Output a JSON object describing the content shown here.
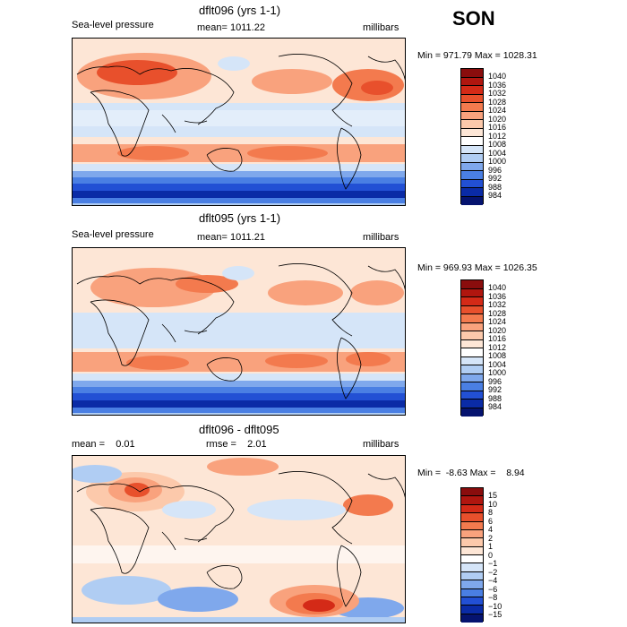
{
  "season": "SON",
  "panels": [
    {
      "title": "dflt096 (yrs 1-1)",
      "variable": "Sea-level pressure",
      "stat_text": "mean= 1011.22",
      "units": "millibars",
      "minmax": "Min = 971.79 Max = 1028.31"
    },
    {
      "title": "dflt095 (yrs 1-1)",
      "variable": "Sea-level pressure",
      "stat_text": "mean= 1011.21",
      "units": "millibars",
      "minmax": "Min = 969.93 Max = 1026.35"
    },
    {
      "title": "dflt096 - dflt095",
      "mean_text": "mean =    0.01",
      "rmse_text": "rmse =    2.01",
      "units": "millibars",
      "minmax": "Min =  -8.63 Max =    8.94"
    }
  ],
  "chart_data": [
    {
      "type": "heatmap",
      "title": "dflt096 (yrs 1-1)",
      "subtitle": "Sea-level pressure",
      "units": "millibars",
      "mean": 1011.22,
      "min": 971.79,
      "max": 1028.31,
      "colorbar_levels": [
        "1040",
        "1036",
        "1032",
        "1028",
        "1024",
        "1020",
        "1016",
        "1012",
        "1008",
        "1004",
        "1000",
        "996",
        "992",
        "988",
        "984"
      ],
      "colorbar_colors": [
        "#8a0d0d",
        "#b0160f",
        "#d42a17",
        "#e8502c",
        "#f37a4e",
        "#f9a27d",
        "#fcc9ab",
        "#fde6d6",
        "#ffffff",
        "#d5e5f8",
        "#b0cdf3",
        "#7fa8ec",
        "#4a7fe3",
        "#2250d4",
        "#0a2ba6",
        "#05136f"
      ]
    },
    {
      "type": "heatmap",
      "title": "dflt095 (yrs 1-1)",
      "subtitle": "Sea-level pressure",
      "units": "millibars",
      "mean": 1011.21,
      "min": 969.93,
      "max": 1026.35,
      "colorbar_levels": [
        "1040",
        "1036",
        "1032",
        "1028",
        "1024",
        "1020",
        "1016",
        "1012",
        "1008",
        "1004",
        "1000",
        "996",
        "992",
        "988",
        "984"
      ],
      "colorbar_colors": [
        "#8a0d0d",
        "#b0160f",
        "#d42a17",
        "#e8502c",
        "#f37a4e",
        "#f9a27d",
        "#fcc9ab",
        "#fde6d6",
        "#ffffff",
        "#d5e5f8",
        "#b0cdf3",
        "#7fa8ec",
        "#4a7fe3",
        "#2250d4",
        "#0a2ba6",
        "#05136f"
      ]
    },
    {
      "type": "heatmap",
      "title": "dflt096 - dflt095",
      "units": "millibars",
      "mean": 0.01,
      "rmse": 2.01,
      "min": -8.63,
      "max": 8.94,
      "colorbar_levels": [
        "15",
        "10",
        "8",
        "6",
        "4",
        "2",
        "1",
        "0",
        "−1",
        "−2",
        "−4",
        "−6",
        "−8",
        "−10",
        "−15"
      ],
      "colorbar_colors": [
        "#8a0d0d",
        "#b0160f",
        "#d42a17",
        "#e8502c",
        "#f37a4e",
        "#f9a27d",
        "#fcc9ab",
        "#fde6d6",
        "#ffffff",
        "#d5e5f8",
        "#b0cdf3",
        "#7fa8ec",
        "#4a7fe3",
        "#2250d4",
        "#0a2ba6",
        "#05136f"
      ]
    }
  ]
}
